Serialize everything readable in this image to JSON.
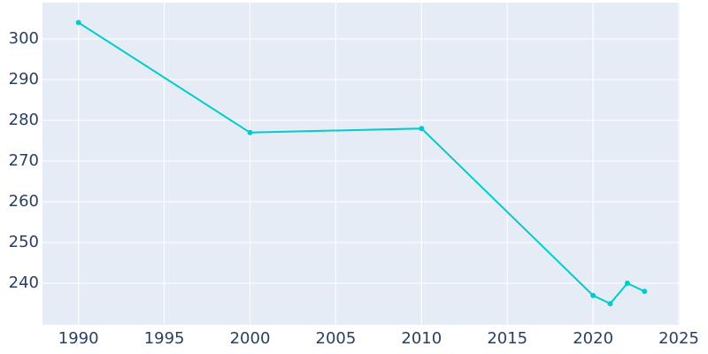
{
  "chart_data": {
    "type": "line",
    "x": [
      1990,
      2000,
      2010,
      2020,
      2021,
      2022,
      2023
    ],
    "series": [
      {
        "color": "#00cccc",
        "values": [
          304,
          277,
          278,
          237,
          235,
          240,
          238
        ]
      }
    ],
    "xlim": [
      1987.9,
      2025.05
    ],
    "xticks": [
      1990,
      1995,
      2000,
      2005,
      2010,
      2015,
      2020,
      2025
    ],
    "ylim": [
      229.8,
      308.9
    ],
    "yticks": [
      240,
      250,
      260,
      270,
      280,
      290,
      300
    ],
    "grid": true
  }
}
